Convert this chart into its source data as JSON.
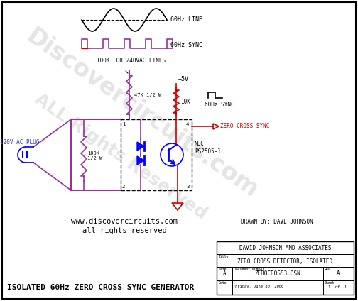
{
  "bg_color": "#ffffff",
  "border_color": "#000000",
  "wire_purple": "#993399",
  "wire_red": "#cc0000",
  "wire_blue": "#3333cc",
  "text_black": "#000000",
  "text_blue": "#3333cc",
  "text_red": "#cc0000",
  "watermark_color": "#d0d0d0",
  "title_text": "ISOLATED 60Hz ZERO CROSS SYNC GENERATOR",
  "drawn_by": "DRAWN BY: DAVE JOHNSON",
  "company": "DAVID JOHNSON AND ASSOCIATES",
  "doc_title": "ZERO CROSS DETECTOR, ISOLATED",
  "doc_number": "ZEROCROSS3.DSN",
  "date_text": "Friday, June 30, 2006",
  "sheet_text": "Sheet   1   of   1",
  "size_a": "A",
  "rev": "A",
  "website": "www.discovercircuits.com",
  "rights": "all rights reserved"
}
